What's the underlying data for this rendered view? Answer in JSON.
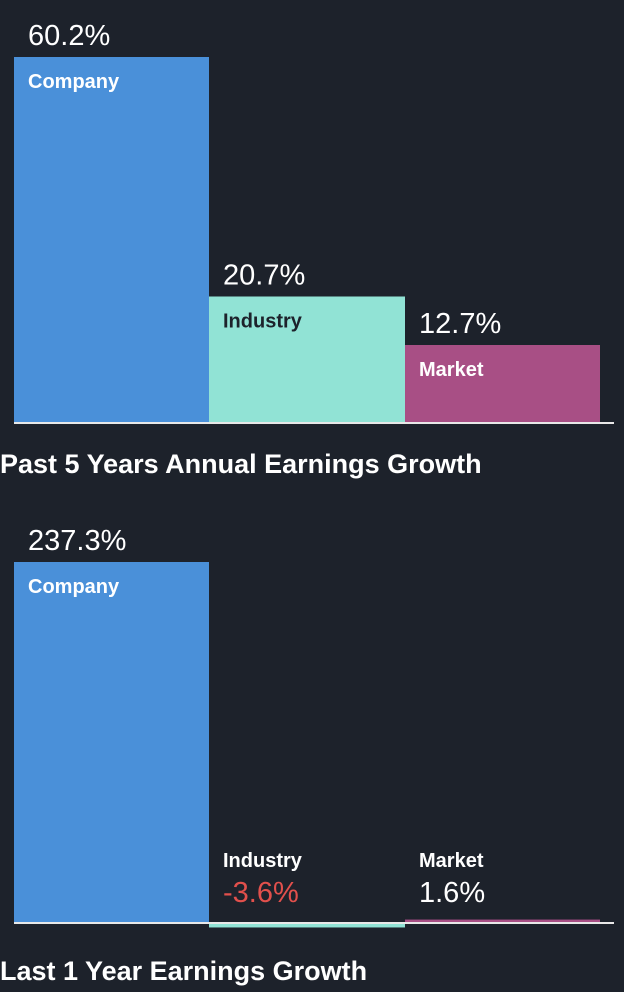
{
  "colors": {
    "background": "#1d222b",
    "company": "#4a90d9",
    "industry": "#91e3d5",
    "market": "#a84f85",
    "text_light": "#ffffff",
    "text_dark": "#1d222b",
    "negative": "#e2504c",
    "baseline": "#e8e8e8"
  },
  "chart_data": [
    {
      "type": "bar",
      "title": "Past 5 Years Annual Earnings Growth",
      "categories": [
        "Company",
        "Industry",
        "Market"
      ],
      "values": [
        60.2,
        20.7,
        12.7
      ],
      "value_labels": [
        "60.2%",
        "20.7%",
        "12.7%"
      ],
      "ylim": [
        0,
        60.2
      ]
    },
    {
      "type": "bar",
      "title": "Last 1 Year Earnings Growth",
      "categories": [
        "Company",
        "Industry",
        "Market"
      ],
      "values": [
        237.3,
        -3.6,
        1.6
      ],
      "value_labels": [
        "237.3%",
        "-3.6%",
        "1.6%"
      ],
      "ylim": [
        -3.6,
        237.3
      ]
    }
  ]
}
